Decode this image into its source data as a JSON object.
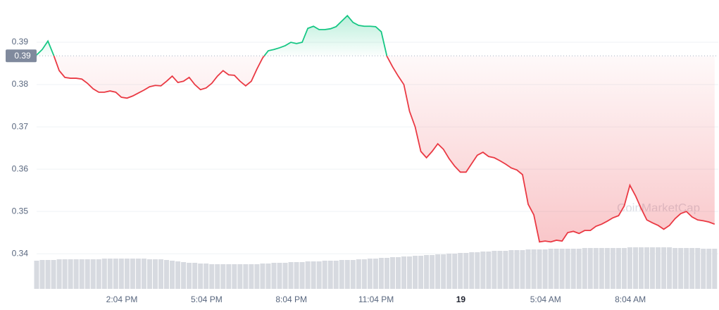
{
  "chart_data": {
    "type": "line",
    "watermark": "CoinMarketCap",
    "x": [
      11.05,
      11.25,
      11.45,
      11.65,
      11.85,
      12.05,
      12.25,
      12.45,
      12.65,
      12.85,
      13.05,
      13.25,
      13.45,
      13.65,
      13.85,
      14.05,
      14.25,
      14.45,
      14.65,
      14.85,
      15.05,
      15.25,
      15.45,
      15.65,
      15.85,
      16.05,
      16.25,
      16.45,
      16.65,
      16.85,
      17.05,
      17.25,
      17.45,
      17.65,
      17.85,
      18.05,
      18.25,
      18.45,
      18.65,
      18.85,
      19.05,
      19.25,
      19.45,
      19.65,
      19.85,
      20.05,
      20.25,
      20.45,
      20.65,
      20.85,
      21.05,
      21.25,
      21.45,
      21.65,
      21.85,
      22.05,
      22.25,
      22.45,
      22.65,
      22.85,
      23.05,
      23.25,
      23.45,
      23.65,
      23.85,
      24.05,
      24.25,
      24.45,
      24.65,
      24.85,
      25.05,
      25.25,
      25.45,
      25.65,
      25.85,
      26.05,
      26.25,
      26.45,
      26.65,
      26.85,
      27.05,
      27.25,
      27.45,
      27.65,
      27.85,
      28.05,
      28.25,
      28.45,
      28.65,
      28.85,
      29.05,
      29.25,
      29.45,
      29.65,
      29.85,
      30.05,
      30.25,
      30.45,
      30.65,
      30.85,
      31.05,
      31.25,
      31.45,
      31.65,
      31.85,
      32.05,
      32.25,
      32.45,
      32.65,
      32.85,
      33.05,
      33.25,
      33.45,
      33.65,
      33.85,
      34.05,
      34.25,
      34.45,
      34.65,
      34.85,
      35.05
    ],
    "values": [
      0.387,
      0.3883,
      0.3903,
      0.387,
      0.3833,
      0.3817,
      0.3815,
      0.3815,
      0.3813,
      0.3803,
      0.379,
      0.3782,
      0.3782,
      0.3785,
      0.3782,
      0.377,
      0.3768,
      0.3773,
      0.378,
      0.3787,
      0.3795,
      0.3798,
      0.3797,
      0.3808,
      0.382,
      0.3805,
      0.3808,
      0.3817,
      0.38,
      0.3788,
      0.3792,
      0.3803,
      0.382,
      0.3833,
      0.3823,
      0.3822,
      0.3808,
      0.3797,
      0.3808,
      0.3837,
      0.3863,
      0.388,
      0.3883,
      0.3887,
      0.3892,
      0.39,
      0.3897,
      0.39,
      0.3933,
      0.3938,
      0.393,
      0.393,
      0.3932,
      0.3937,
      0.395,
      0.3963,
      0.3947,
      0.394,
      0.3938,
      0.3938,
      0.3937,
      0.3925,
      0.3867,
      0.3842,
      0.382,
      0.38,
      0.3737,
      0.37,
      0.3642,
      0.3627,
      0.3642,
      0.366,
      0.3647,
      0.3625,
      0.3607,
      0.3593,
      0.3593,
      0.3613,
      0.3633,
      0.364,
      0.363,
      0.3627,
      0.362,
      0.3612,
      0.3603,
      0.3598,
      0.3587,
      0.3517,
      0.3492,
      0.3428,
      0.343,
      0.3428,
      0.3432,
      0.343,
      0.345,
      0.3453,
      0.3448,
      0.3455,
      0.3455,
      0.3465,
      0.347,
      0.3477,
      0.3485,
      0.349,
      0.3513,
      0.3562,
      0.3537,
      0.3507,
      0.348,
      0.3473,
      0.3467,
      0.3458,
      0.3467,
      0.3483,
      0.3495,
      0.35,
      0.3487,
      0.348,
      0.3478,
      0.3475,
      0.347
    ],
    "volume": [
      40,
      41,
      41,
      41,
      42,
      42,
      42,
      42,
      42,
      42,
      42,
      42,
      43,
      43,
      43,
      43,
      43,
      43,
      43,
      43,
      42,
      42,
      42,
      41,
      40,
      39,
      38,
      37,
      37,
      36,
      36,
      35,
      35,
      35,
      35,
      35,
      35,
      35,
      35,
      35,
      36,
      36,
      37,
      37,
      37,
      38,
      38,
      38,
      39,
      39,
      39,
      40,
      40,
      40,
      41,
      41,
      41,
      42,
      42,
      43,
      43,
      44,
      44,
      45,
      45,
      46,
      46,
      47,
      47,
      48,
      48,
      49,
      49,
      50,
      50,
      51,
      51,
      52,
      52,
      53,
      53,
      54,
      54,
      54,
      55,
      55,
      55,
      56,
      56,
      56,
      56,
      57,
      57,
      57,
      57,
      57,
      57,
      58,
      58,
      58,
      58,
      58,
      58,
      58,
      58,
      59,
      59,
      59,
      59,
      59,
      59,
      59,
      59,
      58,
      58,
      58,
      58,
      58,
      57,
      57,
      57
    ],
    "baseline": {
      "value": 0.3868,
      "label": "0.39"
    },
    "color_up": "#16c784",
    "color_down": "#ea3943",
    "volume_color": "#d7dae0",
    "xlim": [
      11.05,
      35.18
    ],
    "ylim": [
      0.3317,
      0.4
    ],
    "xticks": [
      {
        "value": 14.0667,
        "label": "2:04 PM"
      },
      {
        "value": 17.0667,
        "label": "5:04 PM"
      },
      {
        "value": 20.0667,
        "label": "8:04 PM"
      },
      {
        "value": 23.0667,
        "label": "11:04 PM"
      },
      {
        "value": 26.0667,
        "label": "19"
      },
      {
        "value": 29.0667,
        "label": "5:04 AM"
      },
      {
        "value": 32.0667,
        "label": "8:04 AM"
      }
    ],
    "yticks": [
      {
        "value": 0.34,
        "label": "0.34"
      },
      {
        "value": 0.35,
        "label": "0.35"
      },
      {
        "value": 0.36,
        "label": "0.36"
      },
      {
        "value": 0.37,
        "label": "0.37"
      },
      {
        "value": 0.38,
        "label": "0.38"
      },
      {
        "value": 0.39,
        "label": "0.39"
      }
    ],
    "grid": true
  }
}
